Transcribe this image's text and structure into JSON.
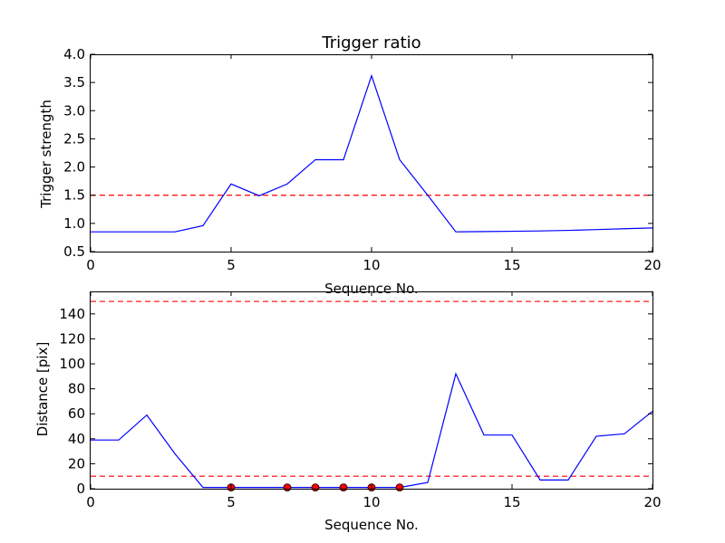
{
  "chart_data": [
    {
      "type": "line",
      "title": "Trigger ratio",
      "xlabel": "Sequence No.",
      "ylabel": "Trigger strength",
      "xlim": [
        0,
        20
      ],
      "ylim": [
        0.5,
        4.0
      ],
      "xticks": [
        "0",
        "5",
        "10",
        "15",
        "20"
      ],
      "yticks": [
        "0.5",
        "1.0",
        "1.5",
        "2.0",
        "2.5",
        "3.0",
        "3.5",
        "4.0"
      ],
      "grid": false,
      "line_color": "#0000ff",
      "threshold_color": "#ff0000",
      "series": [
        {
          "x": [
            0,
            1,
            2,
            3,
            4,
            5,
            6,
            7,
            8,
            9,
            10,
            11,
            12,
            13,
            14,
            15,
            16,
            17,
            18,
            19,
            20
          ],
          "values": [
            0.85,
            0.85,
            0.85,
            0.85,
            0.96,
            1.7,
            1.49,
            1.7,
            2.13,
            2.13,
            3.62,
            2.13,
            1.5,
            0.85,
            0.855,
            0.86,
            0.866,
            0.876,
            0.89,
            0.905,
            0.92
          ]
        }
      ],
      "thresholds": [
        1.5
      ]
    },
    {
      "type": "line",
      "title": "",
      "xlabel": "Sequence No.",
      "ylabel": "Distance [pix]",
      "xlim": [
        0,
        20
      ],
      "ylim": [
        0,
        158
      ],
      "xticks": [
        "0",
        "5",
        "10",
        "15",
        "20"
      ],
      "yticks": [
        "0",
        "20",
        "40",
        "60",
        "80",
        "100",
        "120",
        "140"
      ],
      "grid": false,
      "line_color": "#0000ff",
      "threshold_color": "#ff0000",
      "marker_color": "#ff0000",
      "series": [
        {
          "x": [
            0,
            1,
            2,
            3,
            4,
            5,
            6,
            7,
            8,
            9,
            10,
            11,
            12,
            13,
            14,
            15,
            16,
            17,
            18,
            19,
            20
          ],
          "values": [
            39,
            39,
            59,
            28,
            1,
            1,
            1,
            1,
            1,
            1,
            1,
            1,
            5,
            92,
            43,
            43,
            7,
            7,
            42,
            44,
            62
          ]
        }
      ],
      "markers": [
        {
          "x": 5,
          "y": 1
        },
        {
          "x": 7,
          "y": 1
        },
        {
          "x": 8,
          "y": 1
        },
        {
          "x": 9,
          "y": 1
        },
        {
          "x": 10,
          "y": 1
        },
        {
          "x": 11,
          "y": 1
        }
      ],
      "thresholds": [
        150,
        10
      ]
    }
  ]
}
